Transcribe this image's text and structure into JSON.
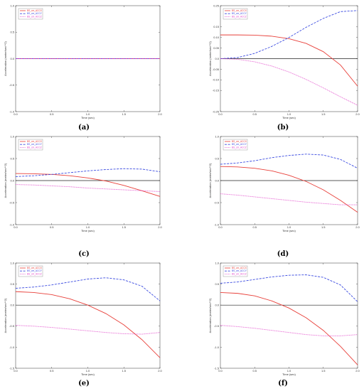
{
  "layout": {
    "cols": 2,
    "rows": 3
  },
  "series_styles": [
    {
      "color": "#e8403a",
      "dash": ""
    },
    {
      "color": "#3a4ae0",
      "dash": "3,1.6"
    },
    {
      "color": "#e040c8",
      "dash": "0.8,0.9"
    }
  ],
  "chart_data": [
    {
      "type": "line",
      "caption": "(a)",
      "xlabel": "Time (sec)",
      "ylabel": "Acceleration (meter/sec**2)",
      "xlim": [
        0,
        2
      ],
      "ylim": [
        -1,
        1
      ],
      "xticks": [
        "0.0",
        "0.5",
        "1.0",
        "1.5",
        "2.0"
      ],
      "yticks": [
        "1.0",
        "0.5",
        "0.0",
        "-0.5",
        "-1.0"
      ],
      "legend_location": "top-left",
      "series": [
        {
          "name": "BS_cm_ACCX",
          "x": [
            0,
            2.0
          ],
          "y": [
            0,
            0
          ]
        },
        {
          "name": "BS_cm_ACCY",
          "x": [
            0,
            2.0
          ],
          "y": [
            0,
            0
          ]
        },
        {
          "name": "BS_cm_ACCZ",
          "x": [
            0,
            2.0
          ],
          "y": [
            0,
            0
          ]
        }
      ]
    },
    {
      "type": "line",
      "caption": "(b)",
      "xlabel": "Time (sec)",
      "ylabel": "Acceleration (meter/sec**2)",
      "xlim": [
        0,
        2
      ],
      "ylim": [
        -0.25,
        0.25
      ],
      "xticks": [
        "0.0",
        "0.5",
        "1.0",
        "1.5",
        "2.0"
      ],
      "yticks": [
        "0.25",
        "0.15",
        "0.10",
        "0.05",
        "0.0",
        "-0.05",
        "-0.10",
        "-0.15",
        "-0.25"
      ],
      "legend_location": "top-left",
      "series": [
        {
          "name": "BS_cm_ACCX",
          "x": [
            0,
            0.25,
            0.5,
            0.75,
            1.0,
            1.25,
            1.5,
            1.75,
            2.0
          ],
          "y": [
            0.112,
            0.112,
            0.111,
            0.106,
            0.094,
            0.072,
            0.033,
            -0.03,
            -0.13
          ]
        },
        {
          "name": "BS_cm_ACCY",
          "x": [
            0,
            0.25,
            0.5,
            0.75,
            1.0,
            1.25,
            1.5,
            1.75,
            2.0
          ],
          "y": [
            0.0,
            0.005,
            0.025,
            0.058,
            0.1,
            0.148,
            0.19,
            0.222,
            0.227
          ]
        },
        {
          "name": "BS_cm_ACCZ",
          "x": [
            0,
            0.25,
            0.5,
            0.75,
            1.0,
            1.25,
            1.5,
            1.75,
            2.0
          ],
          "y": [
            0.0,
            -0.003,
            -0.015,
            -0.035,
            -0.063,
            -0.098,
            -0.138,
            -0.18,
            -0.22
          ]
        }
      ]
    },
    {
      "type": "line",
      "caption": "(c)",
      "xlabel": "Time (sec)",
      "ylabel": "Acceleration (meter/sec**2)",
      "xlim": [
        0,
        2
      ],
      "ylim": [
        -1.0,
        1.0
      ],
      "xticks": [
        "0.0",
        "0.5",
        "1.0",
        "1.5",
        "2.0"
      ],
      "yticks": [
        "1.0",
        "0.5",
        "0.0",
        "-0.5",
        "-1.0"
      ],
      "legend_location": "top-left",
      "series": [
        {
          "name": "BS_cm_ACCX",
          "x": [
            0,
            0.25,
            0.5,
            0.75,
            1.0,
            1.25,
            1.5,
            1.75,
            2.0
          ],
          "y": [
            0.16,
            0.155,
            0.14,
            0.11,
            0.06,
            -0.01,
            -0.11,
            -0.23,
            -0.36
          ]
        },
        {
          "name": "BS_cm_ACCY",
          "x": [
            0,
            0.25,
            0.5,
            0.75,
            1.0,
            1.25,
            1.5,
            1.75,
            2.0
          ],
          "y": [
            0.09,
            0.11,
            0.14,
            0.18,
            0.22,
            0.25,
            0.27,
            0.26,
            0.2
          ]
        },
        {
          "name": "BS_cm_ACCZ",
          "x": [
            0,
            0.25,
            0.5,
            0.75,
            1.0,
            1.25,
            1.5,
            1.75,
            2.0
          ],
          "y": [
            -0.09,
            -0.1,
            -0.12,
            -0.14,
            -0.17,
            -0.19,
            -0.21,
            -0.23,
            -0.25
          ]
        }
      ]
    },
    {
      "type": "line",
      "caption": "(d)",
      "xlabel": "Time (sec)",
      "ylabel": "Acceleration (meter/sec**2)",
      "xlim": [
        0,
        2
      ],
      "ylim": [
        -1.0,
        1.0
      ],
      "xticks": [
        "0.0",
        "0.5",
        "1.0",
        "1.5",
        "2.0"
      ],
      "yticks": [
        "1.0",
        "0.5",
        "0.0",
        "-0.5",
        "-1.0"
      ],
      "legend_location": "top-left",
      "series": [
        {
          "name": "BS_cm_ACCX",
          "x": [
            0,
            0.25,
            0.5,
            0.75,
            1.0,
            1.25,
            1.5,
            1.75,
            2.0
          ],
          "y": [
            0.32,
            0.31,
            0.28,
            0.22,
            0.12,
            -0.02,
            -0.21,
            -0.45,
            -0.72
          ]
        },
        {
          "name": "BS_cm_ACCY",
          "x": [
            0,
            0.25,
            0.5,
            0.75,
            1.0,
            1.25,
            1.5,
            1.75,
            2.0
          ],
          "y": [
            0.37,
            0.4,
            0.45,
            0.52,
            0.57,
            0.6,
            0.58,
            0.48,
            0.28
          ]
        },
        {
          "name": "BS_cm_ACCZ",
          "x": [
            0,
            0.25,
            0.5,
            0.75,
            1.0,
            1.25,
            1.5,
            1.75,
            2.0
          ],
          "y": [
            -0.3,
            -0.33,
            -0.37,
            -0.41,
            -0.45,
            -0.49,
            -0.52,
            -0.55,
            -0.55
          ]
        }
      ]
    },
    {
      "type": "line",
      "caption": "(e)",
      "xlabel": "Time (sec)",
      "ylabel": "Acceleration (meter/sec**2)",
      "xlim": [
        0,
        2
      ],
      "ylim": [
        -1.5,
        1.0
      ],
      "xticks": [
        "0.0",
        "0.5",
        "1.0",
        "1.5",
        "2.0"
      ],
      "yticks": [
        "1.0",
        "0.5",
        "0.0",
        "-0.5",
        "-1.0",
        "-1.5"
      ],
      "legend_location": "top-left",
      "series": [
        {
          "name": "BS_cm_ACCX",
          "x": [
            0,
            0.25,
            0.5,
            0.75,
            1.0,
            1.25,
            1.5,
            1.75,
            2.0
          ],
          "y": [
            0.32,
            0.3,
            0.25,
            0.15,
            0.0,
            -0.2,
            -0.47,
            -0.82,
            -1.25
          ]
        },
        {
          "name": "BS_cm_ACCY",
          "x": [
            0,
            0.25,
            0.5,
            0.75,
            1.0,
            1.25,
            1.5,
            1.75,
            2.0
          ],
          "y": [
            0.4,
            0.43,
            0.48,
            0.55,
            0.62,
            0.65,
            0.6,
            0.45,
            0.1
          ]
        },
        {
          "name": "BS_cm_ACCZ",
          "x": [
            0,
            0.25,
            0.5,
            0.75,
            1.0,
            1.25,
            1.5,
            1.75,
            2.0
          ],
          "y": [
            -0.48,
            -0.5,
            -0.53,
            -0.57,
            -0.61,
            -0.65,
            -0.68,
            -0.69,
            -0.65
          ]
        }
      ]
    },
    {
      "type": "line",
      "caption": "(f)",
      "xlabel": "Time (sec)",
      "ylabel": "Acceleration (meter/sec**2)",
      "xlim": [
        0,
        2
      ],
      "ylim": [
        -1.5,
        1.0
      ],
      "xticks": [
        "0.0",
        "0.5",
        "1.0",
        "1.5",
        "2.0"
      ],
      "yticks": [
        "1.0",
        "0.5",
        "0.0",
        "-0.5",
        "-1.0",
        "-1.5"
      ],
      "legend_location": "top-left",
      "series": [
        {
          "name": "BS_cm_ACCX",
          "x": [
            0,
            0.25,
            0.5,
            0.75,
            1.0,
            1.25,
            1.5,
            1.75,
            2.0
          ],
          "y": [
            0.3,
            0.28,
            0.22,
            0.1,
            -0.07,
            -0.3,
            -0.6,
            -0.98,
            -1.42
          ]
        },
        {
          "name": "BS_cm_ACCY",
          "x": [
            0,
            0.25,
            0.5,
            0.75,
            1.0,
            1.25,
            1.5,
            1.75,
            2.0
          ],
          "y": [
            0.52,
            0.55,
            0.61,
            0.67,
            0.71,
            0.72,
            0.66,
            0.48,
            0.08
          ]
        },
        {
          "name": "BS_cm_ACCZ",
          "x": [
            0,
            0.25,
            0.5,
            0.75,
            1.0,
            1.25,
            1.5,
            1.75,
            2.0
          ],
          "y": [
            -0.48,
            -0.51,
            -0.55,
            -0.6,
            -0.65,
            -0.7,
            -0.73,
            -0.73,
            -0.7
          ]
        }
      ]
    }
  ]
}
